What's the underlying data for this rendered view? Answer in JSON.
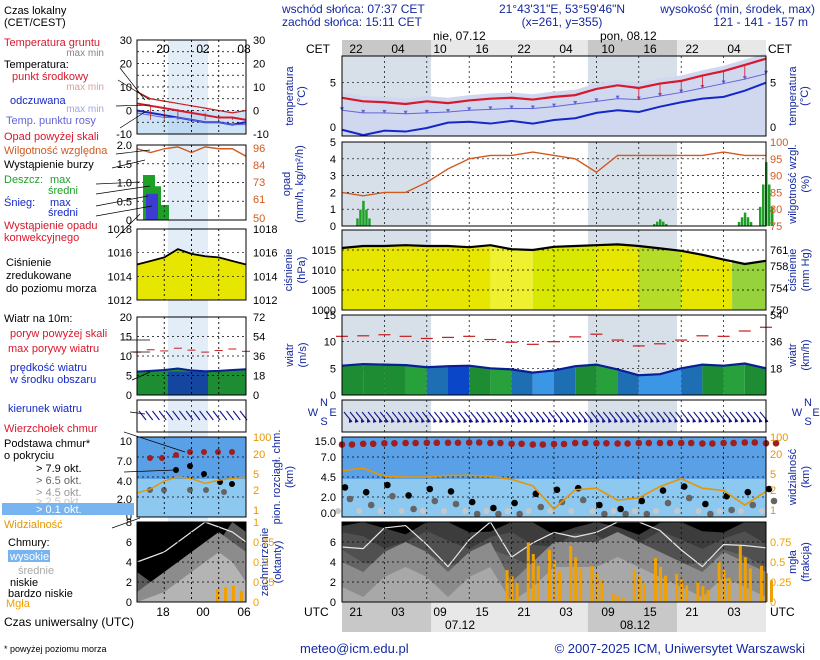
{
  "header": {
    "sunrise": "wschód słońca: 07:37 CET",
    "sunset": "zachód słońca: 15:11 CET",
    "coords": "21°43'31\"E, 53°59'46\"N",
    "grid": "(x=261,  y=355)",
    "elevation_title": "wysokość (min, środek, max)",
    "elevation_values": "121 - 141 - 157 m"
  },
  "timezone": {
    "local": "CET",
    "utc": "UTC"
  },
  "day_labels": {
    "top1": "nie, 07.12",
    "top2": "pon, 08.12",
    "bottom1": "07.12",
    "bottom2": "08.12"
  },
  "top_hours": [
    "22",
    "04",
    "10",
    "16",
    "22",
    "04",
    "10",
    "16",
    "22",
    "04"
  ],
  "bottom_hours": [
    "21",
    "03",
    "09",
    "15",
    "21",
    "03",
    "09",
    "15",
    "21",
    "03"
  ],
  "legend": {
    "time_local": "Czas lokalny\n(CET/CEST)",
    "time_local_ticks": [
      "20",
      "02",
      "08"
    ],
    "time_utc": "Czas uniwersalny (UTC)",
    "time_utc_ticks": [
      "18",
      "00",
      "06"
    ],
    "temp_ground": "Temperatura gruntu",
    "temp_ground_sub": "max min",
    "temp_label": "Temperatura:",
    "temp_mid": "punkt środkowy",
    "temp_mid_sub": "max min",
    "temp_felt": "odczuwana",
    "temp_felt_sub": "max min",
    "dewpoint": "Temp. punktu rosy",
    "precip_over": "Opad powyżej skali",
    "rh": "Wilgotność względna",
    "storm": "Wystąpienie burzy",
    "rain": "Deszcz:",
    "rain_max": "max",
    "rain_mean": "średni",
    "snow": "Śnieg:",
    "snow_max": "max",
    "snow_mean": "średni",
    "conv": "Wystąpienie opadu\nkonwekcyjnego",
    "pressure": "Ciśnienie\nzredukowane\ndo poziomu morza",
    "wind": "Wiatr na 10m:",
    "gust_over": "poryw powyżej skali",
    "gust_max": "max porywy wiatru",
    "wind_mean": "prędkość wiatru\nw środku obszaru",
    "wind_dir": "kierunek wiatru",
    "cloud_top": "Wierzchołek chmur",
    "cloud_base": "Podstawa chmur*\no pokryciu",
    "cb_79": "> 7.9 okt.",
    "cb_65": "> 6.5 okt.",
    "cb_45": "> 4.5 okt.",
    "cb_25": "> 2.5 okt.",
    "cb_01": "> 0.1 okt.",
    "visibility": "Widzialność",
    "clouds": "Chmury:",
    "cl_high": "wysokie",
    "cl_mid": "średnie",
    "cl_low": "niskie",
    "cl_vlow": "bardzo niskie",
    "fog": "Mgła",
    "footnote": "* powyżej poziomu morza"
  },
  "axis_titles": {
    "temperature_left": "temperatura\n(°C)",
    "temperature_right": "temperatura\n(°C)",
    "precip_left": "opad\n(mm/h, kg/m²/h)",
    "precip_right": "wilgotność wzgl.\n(%)",
    "pressure_left": "ciśnienie\n(hPa)",
    "pressure_right": "ciśnienie\n(mm Hg)",
    "wind_left": "wiatr\n(m/s)",
    "wind_right": "wiatr\n(km/h)",
    "dir_left": "N\nW    E\nS",
    "dir_right": "N\nW    E\nS",
    "cloud_left": "pion. rozciągł. chm.\n(km)",
    "cloud_right": "widzialność\n(km)",
    "cover_left": "zachmurzenie\n(oktanty)",
    "cover_right": "mgła\n(frakcja)"
  },
  "footer": {
    "email": "meteo@icm.edu.pl",
    "copyright": "© 2007-2025 ICM, Uniwersytet Warszawski"
  },
  "colors": {
    "temp": "#d8182c",
    "felt": "#1428c8",
    "dew": "#6464d8",
    "rh": "#d25a1e",
    "pressure_fill": "#e6e600",
    "wind_fill": "#1e8c32",
    "wind_blue": "#0a46c8",
    "cloud_base": "#a01e1e",
    "visibility": "#e69600",
    "fog": "#f0a000",
    "night_band": "#d7dfe9"
  },
  "chart_data": {
    "type": "line",
    "x_hours_utc": [
      18,
      21,
      0,
      3,
      6,
      9,
      12,
      15,
      18,
      21,
      0,
      3,
      6,
      9,
      12,
      15,
      18,
      21,
      0,
      3,
      6
    ],
    "temperature": {
      "ylim": [
        -1,
        8
      ],
      "ticks": [
        0,
        5
      ],
      "series": [
        {
          "name": "punkt środkowy",
          "values": [
            3.3,
            2.9,
            2.8,
            2.6,
            2.9,
            2.7,
            3.0,
            3.2,
            3.3,
            3.1,
            3.4,
            3.6,
            4.3,
            4.7,
            4.4,
            4.9,
            5.2,
            5.8,
            6.3,
            7.0,
            7.7
          ]
        },
        {
          "name": "odczuwana",
          "values": [
            -0.3,
            -0.9,
            -0.4,
            -0.5,
            -0.1,
            0.5,
            0.6,
            0.4,
            0.7,
            0.4,
            0.8,
            1.0,
            1.6,
            1.9,
            1.7,
            2.3,
            2.8,
            3.2,
            3.4,
            4.1,
            5.0
          ]
        },
        {
          "name": "Temp. punktu rosy",
          "values": [
            1.9,
            1.6,
            1.6,
            1.5,
            1.6,
            1.7,
            1.9,
            2.0,
            2.1,
            2.1,
            2.3,
            2.6,
            2.9,
            3.2,
            3.1,
            3.5,
            3.9,
            4.4,
            4.9,
            5.4,
            6.0
          ]
        }
      ]
    },
    "precip_rh": {
      "precip_ylim": [
        0,
        5
      ],
      "rh_ylim": [
        75,
        100
      ],
      "rh_values": [
        85,
        84,
        85,
        85,
        88,
        92,
        95,
        96,
        96,
        97,
        96,
        95,
        91,
        96,
        96,
        96,
        96,
        96,
        97,
        96,
        96
      ],
      "precip_max": [
        0,
        1.5,
        0,
        0,
        0,
        0,
        0,
        0,
        0,
        0,
        0,
        0,
        0,
        0,
        0,
        0.4,
        0,
        0,
        0,
        0.8,
        3.8
      ]
    },
    "pressure": {
      "ylim": [
        1000,
        1020
      ],
      "ticks": [
        1000,
        1005,
        1010,
        1015
      ],
      "values": [
        1015.5,
        1016.0,
        1016.0,
        1016.2,
        1016.0,
        1016.0,
        1015.7,
        1016.2,
        1015.2,
        1015.0,
        1015.8,
        1016.0,
        1016.2,
        1016.4,
        1016.0,
        1015.4,
        1014.8,
        1013.8,
        1012.6,
        1011.5,
        1012.3
      ]
    },
    "wind": {
      "ylim": [
        0,
        15
      ],
      "ticks": [
        0,
        5,
        10,
        15
      ],
      "mean": [
        5.5,
        5.8,
        5.7,
        5.6,
        5.2,
        5.4,
        5.5,
        5.0,
        4.8,
        4.2,
        4.6,
        5.4,
        5.7,
        4.8,
        3.7,
        3.9,
        5.0,
        5.7,
        5.5,
        5.9,
        5.0
      ],
      "gust": [
        11.0,
        11.1,
        11.3,
        11.0,
        10.6,
        10.8,
        11.0,
        10.4,
        9.9,
        9.5,
        10.0,
        10.9,
        11.4,
        10.3,
        9.2,
        9.6,
        10.3,
        11.1,
        11.0,
        12.0,
        12.7
      ],
      "direction_deg": [
        280,
        285,
        285,
        285,
        285,
        290,
        290,
        285,
        280,
        275,
        275,
        280,
        280,
        280,
        280,
        275,
        275,
        275,
        270,
        265,
        270
      ]
    },
    "cloud": {
      "ylim": [
        0,
        15
      ],
      "ticks": [
        0,
        2,
        4.5,
        7,
        15
      ],
      "top_km": [
        12.0,
        12.3,
        12.5,
        12.6,
        12.7,
        12.7,
        12.8,
        12.6,
        12.3,
        12.0,
        12.2,
        12.6,
        12.5,
        12.4,
        12.6,
        12.6,
        12.6,
        12.4,
        12.6,
        12.8,
        12.5
      ],
      "visibility_km": [
        5.8,
        6.1,
        5.1,
        5.0,
        5.0,
        5.2,
        5.2,
        5.1,
        4.7,
        3.9,
        1.0,
        3.4,
        3.6,
        2.1,
        2.4,
        3.8,
        4.8,
        3.6,
        3.3,
        1.5,
        3.2
      ]
    },
    "cover": {
      "ylim": [
        0,
        8
      ],
      "ticks": [
        0,
        2,
        4,
        6
      ],
      "low": [
        4,
        3,
        5,
        6,
        5,
        3,
        5,
        6,
        2,
        4,
        6,
        6,
        6,
        7,
        6,
        5,
        4,
        3,
        5,
        4,
        3
      ],
      "fog": [
        0,
        0,
        0,
        0,
        0,
        0,
        0,
        0,
        0.4,
        0.75,
        0.65,
        0.7,
        0.45,
        0.1,
        0.4,
        0.55,
        0.35,
        0.25,
        0.5,
        0.7,
        0.45
      ]
    }
  }
}
